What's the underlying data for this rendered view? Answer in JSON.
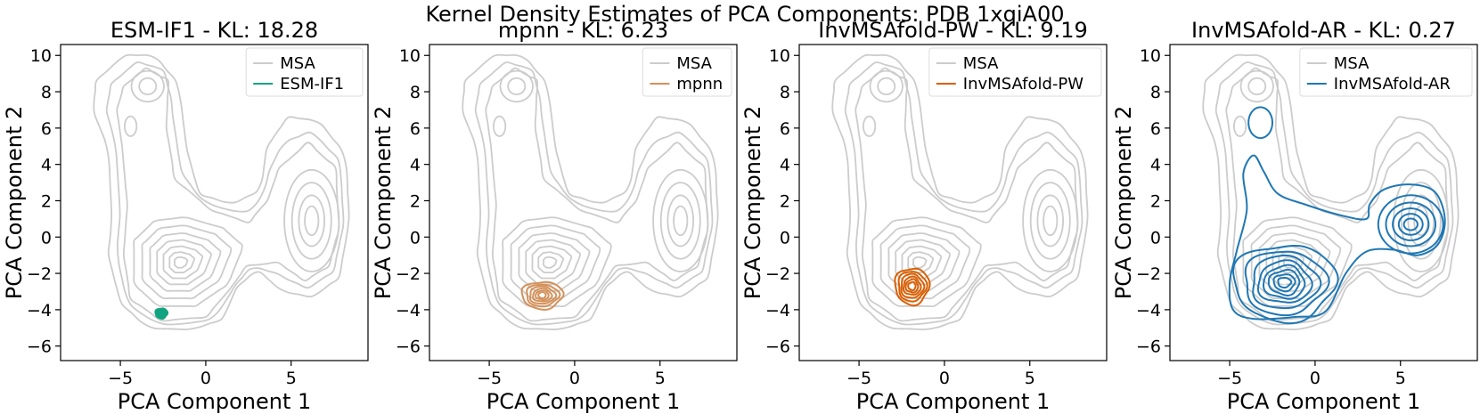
{
  "figure": {
    "suptitle": "Kernel Density Estimates of PCA Components: PDB 1xqiA00"
  },
  "colors": {
    "msa": "#cccccc",
    "esm": "#10a37f",
    "mpnn": "#d4915b",
    "pw": "#d95f02",
    "ar": "#1f77b4"
  },
  "chart_data": [
    {
      "type": "kde-contour",
      "title": "ESM-IF1 - KL: 18.28",
      "xlabel": "PCA Component 1",
      "ylabel": "PCA Component 2",
      "xlim": [
        -8.5,
        9.5
      ],
      "ylim": [
        -6.8,
        10.6
      ],
      "xticks": [
        -5,
        0,
        5
      ],
      "yticks": [
        -6,
        -4,
        -2,
        0,
        2,
        4,
        6,
        8,
        10
      ],
      "legend": [
        "MSA",
        "ESM-IF1"
      ],
      "legend_loc": "upper right",
      "model_color": "esm",
      "model_center": [
        -2.6,
        -4.2
      ],
      "model_rx": [
        0.35,
        0.25,
        0.15
      ],
      "model_ry": [
        0.28,
        0.2,
        0.12
      ],
      "model_fill": true
    },
    {
      "type": "kde-contour",
      "title": "mpnn - KL: 6.23",
      "xlabel": "PCA Component 1",
      "ylabel": "PCA Component 2",
      "xlim": [
        -8.5,
        9.5
      ],
      "ylim": [
        -6.8,
        10.6
      ],
      "xticks": [
        -5,
        0,
        5
      ],
      "yticks": [
        -6,
        -4,
        -2,
        0,
        2,
        4,
        6,
        8,
        10
      ],
      "legend": [
        "MSA",
        "mpnn"
      ],
      "legend_loc": "upper right",
      "model_color": "mpnn",
      "model_center": [
        -1.9,
        -3.2
      ],
      "model_rx": [
        1.2,
        0.95,
        0.75,
        0.55,
        0.38,
        0.22
      ],
      "model_ry": [
        0.75,
        0.6,
        0.48,
        0.36,
        0.25,
        0.15
      ],
      "model_fill": false
    },
    {
      "type": "kde-contour",
      "title": "InvMSAfold-PW - KL: 9.19",
      "xlabel": "PCA Component 1",
      "ylabel": "PCA Component 2",
      "xlim": [
        -8.5,
        9.5
      ],
      "ylim": [
        -6.8,
        10.6
      ],
      "xticks": [
        -5,
        0,
        5
      ],
      "yticks": [
        -6,
        -4,
        -2,
        0,
        2,
        4,
        6,
        8,
        10
      ],
      "legend": [
        "MSA",
        "InvMSAfold-PW"
      ],
      "legend_loc": "upper right",
      "model_color": "pw",
      "model_center": [
        -1.9,
        -2.7
      ],
      "model_rx": [
        1.0,
        0.82,
        0.66,
        0.5,
        0.36,
        0.22
      ],
      "model_ry": [
        1.0,
        0.82,
        0.66,
        0.5,
        0.36,
        0.22
      ],
      "model_fill": false
    },
    {
      "type": "kde-contour",
      "title": "InvMSAfold-AR - KL: 0.27",
      "xlabel": "PCA Component 1",
      "ylabel": "PCA Component 2",
      "xlim": [
        -8.5,
        9.5
      ],
      "ylim": [
        -6.8,
        10.6
      ],
      "xticks": [
        -5,
        0,
        5
      ],
      "yticks": [
        -6,
        -4,
        -2,
        0,
        2,
        4,
        6,
        8,
        10
      ],
      "legend": [
        "MSA",
        "InvMSAfold-AR"
      ],
      "legend_loc": "upper right",
      "model_color": "ar",
      "model_center": [
        -1.8,
        -2.5
      ],
      "model_rx": [
        3.0,
        2.4,
        1.95,
        1.55,
        1.2,
        0.9,
        0.62,
        0.38
      ],
      "model_ry": [
        2.1,
        1.75,
        1.45,
        1.15,
        0.9,
        0.68,
        0.46,
        0.27
      ],
      "model_fill": false,
      "model_extra": [
        {
          "cx": 5.6,
          "cy": 0.7,
          "rx": [
            1.9,
            1.45,
            1.05,
            0.7,
            0.4
          ],
          "ry": [
            1.6,
            1.2,
            0.88,
            0.58,
            0.32
          ]
        },
        {
          "cx": -3.2,
          "cy": 6.3,
          "rx": [
            0.7
          ],
          "ry": [
            0.85
          ]
        }
      ],
      "model_envelope": [
        [
          -4.8,
          -4.0
        ],
        [
          -5.0,
          -2.5
        ],
        [
          -4.6,
          -0.8
        ],
        [
          -4.0,
          1.5
        ],
        [
          -4.2,
          3.5
        ],
        [
          -3.6,
          4.5
        ],
        [
          -3.0,
          3.6
        ],
        [
          -2.2,
          2.4
        ],
        [
          -0.6,
          1.8
        ],
        [
          1.5,
          1.2
        ],
        [
          3.0,
          1.0
        ],
        [
          3.2,
          1.8
        ],
        [
          4.0,
          2.6
        ],
        [
          5.5,
          2.9
        ],
        [
          7.0,
          2.5
        ],
        [
          7.6,
          1.0
        ],
        [
          7.2,
          -0.4
        ],
        [
          6.0,
          -1.0
        ],
        [
          4.6,
          -0.7
        ],
        [
          3.0,
          -0.8
        ],
        [
          1.8,
          -2.0
        ],
        [
          0.6,
          -4.1
        ],
        [
          -1.2,
          -4.4
        ],
        [
          -3.6,
          -4.5
        ]
      ]
    }
  ]
}
